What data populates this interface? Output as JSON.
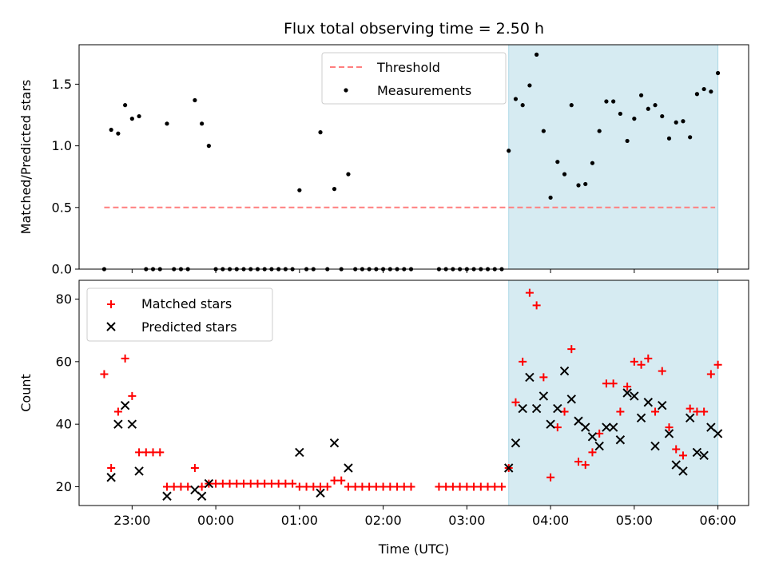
{
  "chart_data": [
    {
      "type": "scatter",
      "title": "Flux total observing time = 2.50 h",
      "ylabel": "Matched/Predicted stars",
      "xlabel": "",
      "xlim": [
        "22:22",
        "06:22"
      ],
      "ylim": [
        0,
        1.82
      ],
      "yticks": [
        "0.0",
        "0.5",
        "1.0",
        "1.5"
      ],
      "legend": {
        "placement": "top-center",
        "entries": [
          "Threshold",
          "Measurements"
        ]
      },
      "threshold": {
        "name": "Threshold",
        "value": 0.5,
        "x": [
          "22:40",
          "05:58"
        ],
        "color": "#ff7f7f"
      },
      "highlight": {
        "x": [
          "03:30",
          "06:00"
        ],
        "color": "#add8e6"
      },
      "series": [
        {
          "name": "Measurements",
          "color": "#000000",
          "points": [
            [
              "22:40",
              0
            ],
            [
              "22:45",
              1.13
            ],
            [
              "22:50",
              1.1
            ],
            [
              "22:55",
              1.33
            ],
            [
              "23:00",
              1.22
            ],
            [
              "23:05",
              1.24
            ],
            [
              "23:10",
              0
            ],
            [
              "23:15",
              0
            ],
            [
              "23:20",
              0
            ],
            [
              "23:25",
              1.18
            ],
            [
              "23:30",
              0
            ],
            [
              "23:35",
              0
            ],
            [
              "23:40",
              0
            ],
            [
              "23:45",
              1.37
            ],
            [
              "23:50",
              1.18
            ],
            [
              "23:55",
              1.0
            ],
            [
              "00:00",
              0
            ],
            [
              "00:05",
              0
            ],
            [
              "00:10",
              0
            ],
            [
              "00:15",
              0
            ],
            [
              "00:20",
              0
            ],
            [
              "00:25",
              0
            ],
            [
              "00:30",
              0
            ],
            [
              "00:35",
              0
            ],
            [
              "00:40",
              0
            ],
            [
              "00:45",
              0
            ],
            [
              "00:50",
              0
            ],
            [
              "00:55",
              0
            ],
            [
              "01:00",
              0.64
            ],
            [
              "01:05",
              0
            ],
            [
              "01:10",
              0
            ],
            [
              "01:15",
              1.11
            ],
            [
              "01:20",
              0
            ],
            [
              "01:25",
              0.65
            ],
            [
              "01:30",
              0
            ],
            [
              "01:35",
              0.77
            ],
            [
              "01:40",
              0
            ],
            [
              "01:45",
              0
            ],
            [
              "01:50",
              0
            ],
            [
              "01:55",
              0
            ],
            [
              "02:00",
              0
            ],
            [
              "02:05",
              0
            ],
            [
              "02:10",
              0
            ],
            [
              "02:15",
              0
            ],
            [
              "02:20",
              0
            ],
            [
              "02:40",
              0
            ],
            [
              "02:45",
              0
            ],
            [
              "02:50",
              0
            ],
            [
              "02:55",
              0
            ],
            [
              "03:00",
              0
            ],
            [
              "03:05",
              0
            ],
            [
              "03:10",
              0
            ],
            [
              "03:15",
              0
            ],
            [
              "03:20",
              0
            ],
            [
              "03:25",
              0
            ],
            [
              "03:30",
              0.96
            ],
            [
              "03:35",
              1.38
            ],
            [
              "03:40",
              1.33
            ],
            [
              "03:45",
              1.49
            ],
            [
              "03:50",
              1.74
            ],
            [
              "03:55",
              1.12
            ],
            [
              "04:00",
              0.58
            ],
            [
              "04:05",
              0.87
            ],
            [
              "04:10",
              0.77
            ],
            [
              "04:15",
              1.33
            ],
            [
              "04:20",
              0.68
            ],
            [
              "04:25",
              0.69
            ],
            [
              "04:30",
              0.86
            ],
            [
              "04:35",
              1.12
            ],
            [
              "04:40",
              1.36
            ],
            [
              "04:45",
              1.36
            ],
            [
              "04:50",
              1.26
            ],
            [
              "04:55",
              1.04
            ],
            [
              "05:00",
              1.22
            ],
            [
              "05:05",
              1.41
            ],
            [
              "05:10",
              1.3
            ],
            [
              "05:15",
              1.33
            ],
            [
              "05:20",
              1.24
            ],
            [
              "05:25",
              1.06
            ],
            [
              "05:30",
              1.19
            ],
            [
              "05:35",
              1.2
            ],
            [
              "05:40",
              1.07
            ],
            [
              "05:45",
              1.42
            ],
            [
              "05:50",
              1.46
            ],
            [
              "05:55",
              1.44
            ],
            [
              "06:00",
              1.59
            ]
          ]
        }
      ]
    },
    {
      "type": "scatter",
      "title": "",
      "ylabel": "Count",
      "xlabel": "Time (UTC)",
      "xlim": [
        "22:22",
        "06:22"
      ],
      "ylim": [
        14,
        86
      ],
      "yticks": [
        "20",
        "40",
        "60",
        "80"
      ],
      "xticks": [
        "23:00",
        "00:00",
        "01:00",
        "02:00",
        "03:00",
        "04:00",
        "05:00",
        "06:00"
      ],
      "legend": {
        "placement": "top-left",
        "entries": [
          "Matched stars",
          "Predicted stars"
        ]
      },
      "highlight": {
        "x": [
          "03:30",
          "06:00"
        ],
        "color": "#add8e6"
      },
      "series": [
        {
          "name": "Matched stars",
          "marker": "plus",
          "color": "#ff0000",
          "points": [
            [
              "22:40",
              56
            ],
            [
              "22:45",
              26
            ],
            [
              "22:50",
              44
            ],
            [
              "22:55",
              61
            ],
            [
              "23:00",
              49
            ],
            [
              "23:05",
              31
            ],
            [
              "23:10",
              31
            ],
            [
              "23:15",
              31
            ],
            [
              "23:20",
              31
            ],
            [
              "23:25",
              20
            ],
            [
              "23:30",
              20
            ],
            [
              "23:35",
              20
            ],
            [
              "23:40",
              20
            ],
            [
              "23:45",
              26
            ],
            [
              "23:50",
              20
            ],
            [
              "23:55",
              21
            ],
            [
              "00:00",
              21
            ],
            [
              "00:05",
              21
            ],
            [
              "00:10",
              21
            ],
            [
              "00:15",
              21
            ],
            [
              "00:20",
              21
            ],
            [
              "00:25",
              21
            ],
            [
              "00:30",
              21
            ],
            [
              "00:35",
              21
            ],
            [
              "00:40",
              21
            ],
            [
              "00:45",
              21
            ],
            [
              "00:50",
              21
            ],
            [
              "00:55",
              21
            ],
            [
              "01:00",
              20
            ],
            [
              "01:05",
              20
            ],
            [
              "01:10",
              20
            ],
            [
              "01:15",
              20
            ],
            [
              "01:20",
              20
            ],
            [
              "01:25",
              22
            ],
            [
              "01:30",
              22
            ],
            [
              "01:35",
              20
            ],
            [
              "01:40",
              20
            ],
            [
              "01:45",
              20
            ],
            [
              "01:50",
              20
            ],
            [
              "01:55",
              20
            ],
            [
              "02:00",
              20
            ],
            [
              "02:05",
              20
            ],
            [
              "02:10",
              20
            ],
            [
              "02:15",
              20
            ],
            [
              "02:20",
              20
            ],
            [
              "02:40",
              20
            ],
            [
              "02:45",
              20
            ],
            [
              "02:50",
              20
            ],
            [
              "02:55",
              20
            ],
            [
              "03:00",
              20
            ],
            [
              "03:05",
              20
            ],
            [
              "03:10",
              20
            ],
            [
              "03:15",
              20
            ],
            [
              "03:20",
              20
            ],
            [
              "03:25",
              20
            ],
            [
              "03:30",
              26
            ],
            [
              "03:35",
              47
            ],
            [
              "03:40",
              60
            ],
            [
              "03:45",
              82
            ],
            [
              "03:50",
              78
            ],
            [
              "03:55",
              55
            ],
            [
              "04:00",
              23
            ],
            [
              "04:05",
              39
            ],
            [
              "04:10",
              44
            ],
            [
              "04:15",
              64
            ],
            [
              "04:20",
              28
            ],
            [
              "04:25",
              27
            ],
            [
              "04:30",
              31
            ],
            [
              "04:35",
              37
            ],
            [
              "04:40",
              53
            ],
            [
              "04:45",
              53
            ],
            [
              "04:50",
              44
            ],
            [
              "04:55",
              52
            ],
            [
              "05:00",
              60
            ],
            [
              "05:05",
              59
            ],
            [
              "05:10",
              61
            ],
            [
              "05:15",
              44
            ],
            [
              "05:20",
              57
            ],
            [
              "05:25",
              39
            ],
            [
              "05:30",
              32
            ],
            [
              "05:35",
              30
            ],
            [
              "05:40",
              45
            ],
            [
              "05:45",
              44
            ],
            [
              "05:50",
              44
            ],
            [
              "05:55",
              56
            ],
            [
              "06:00",
              59
            ]
          ]
        },
        {
          "name": "Predicted stars",
          "marker": "x",
          "color": "#000000",
          "points": [
            [
              "22:45",
              23
            ],
            [
              "22:50",
              40
            ],
            [
              "22:55",
              46
            ],
            [
              "23:00",
              40
            ],
            [
              "23:05",
              25
            ],
            [
              "23:25",
              17
            ],
            [
              "23:45",
              19
            ],
            [
              "23:50",
              17
            ],
            [
              "23:55",
              21
            ],
            [
              "01:00",
              31
            ],
            [
              "01:15",
              18
            ],
            [
              "01:25",
              34
            ],
            [
              "01:35",
              26
            ],
            [
              "03:30",
              26
            ],
            [
              "03:35",
              34
            ],
            [
              "03:40",
              45
            ],
            [
              "03:45",
              55
            ],
            [
              "03:50",
              45
            ],
            [
              "03:55",
              49
            ],
            [
              "04:00",
              40
            ],
            [
              "04:05",
              45
            ],
            [
              "04:10",
              57
            ],
            [
              "04:15",
              48
            ],
            [
              "04:20",
              41
            ],
            [
              "04:25",
              39
            ],
            [
              "04:30",
              36
            ],
            [
              "04:35",
              33
            ],
            [
              "04:40",
              39
            ],
            [
              "04:45",
              39
            ],
            [
              "04:50",
              35
            ],
            [
              "04:55",
              50
            ],
            [
              "05:00",
              49
            ],
            [
              "05:05",
              42
            ],
            [
              "05:10",
              47
            ],
            [
              "05:15",
              33
            ],
            [
              "05:20",
              46
            ],
            [
              "05:25",
              37
            ],
            [
              "05:30",
              27
            ],
            [
              "05:35",
              25
            ],
            [
              "05:40",
              42
            ],
            [
              "05:45",
              31
            ],
            [
              "05:50",
              30
            ],
            [
              "05:55",
              39
            ],
            [
              "06:00",
              37
            ]
          ]
        }
      ]
    }
  ]
}
